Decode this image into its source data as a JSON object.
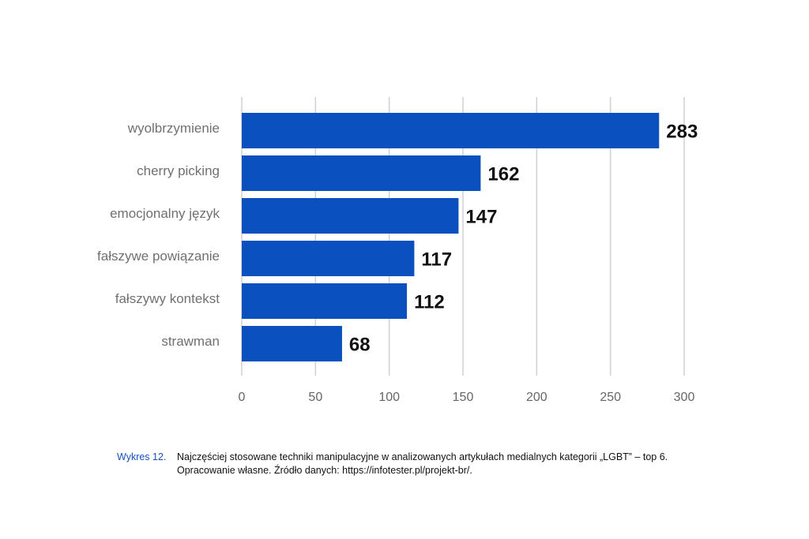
{
  "chart_data": {
    "type": "bar",
    "orientation": "horizontal",
    "categories": [
      "wyolbrzymienie",
      "cherry picking",
      "emocjonalny język",
      "fałszywe powiązanie",
      "fałszywy kontekst",
      "strawman"
    ],
    "values": [
      283,
      162,
      147,
      117,
      112,
      68
    ],
    "xlim": [
      0,
      300
    ],
    "xticks": [
      "0",
      "50",
      "100",
      "150",
      "200",
      "250",
      "300"
    ],
    "grid": "vertical",
    "bar_color": "#0a50be",
    "data_labels": true
  },
  "caption": {
    "label": "Wykres 12.",
    "line1": "Najczęściej stosowane techniki manipulacyjne w analizowanych artykułach medialnych kategorii „LGBT” – top 6.",
    "line2": "Opracowanie własne. Źródło danych: https://infotester.pl/projekt-br/."
  }
}
